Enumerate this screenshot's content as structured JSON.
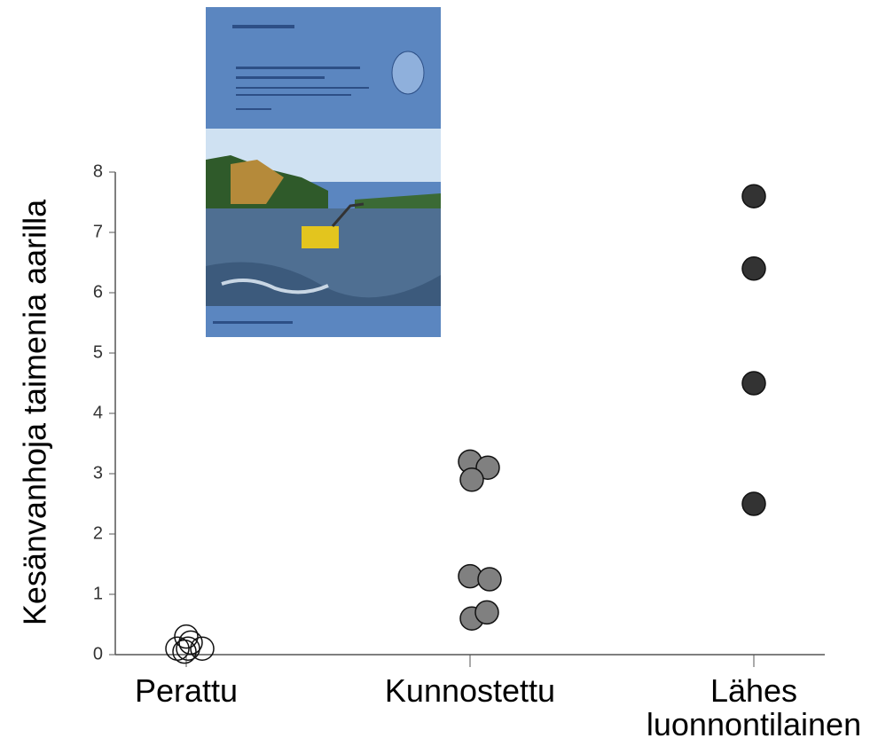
{
  "chart_data": {
    "type": "strip",
    "y_label": "Kesänvanhoja taimenia aarilla",
    "categories": [
      "Perattu",
      "Kunnostettu",
      "Lähes luonnontilainen"
    ],
    "values": [
      [
        0.3,
        0.2,
        0.1,
        0.1,
        0.05,
        0.1
      ],
      [
        3.2,
        3.1,
        2.9,
        1.3,
        1.25,
        0.6,
        0.7
      ],
      [
        7.6,
        6.4,
        4.5,
        2.5
      ]
    ],
    "colors": [
      "#ffffff",
      "#808080",
      "#333333"
    ],
    "ylim": [
      0,
      8
    ],
    "yticks": [
      0,
      1,
      2,
      3,
      4,
      5,
      6,
      7,
      8
    ]
  }
}
